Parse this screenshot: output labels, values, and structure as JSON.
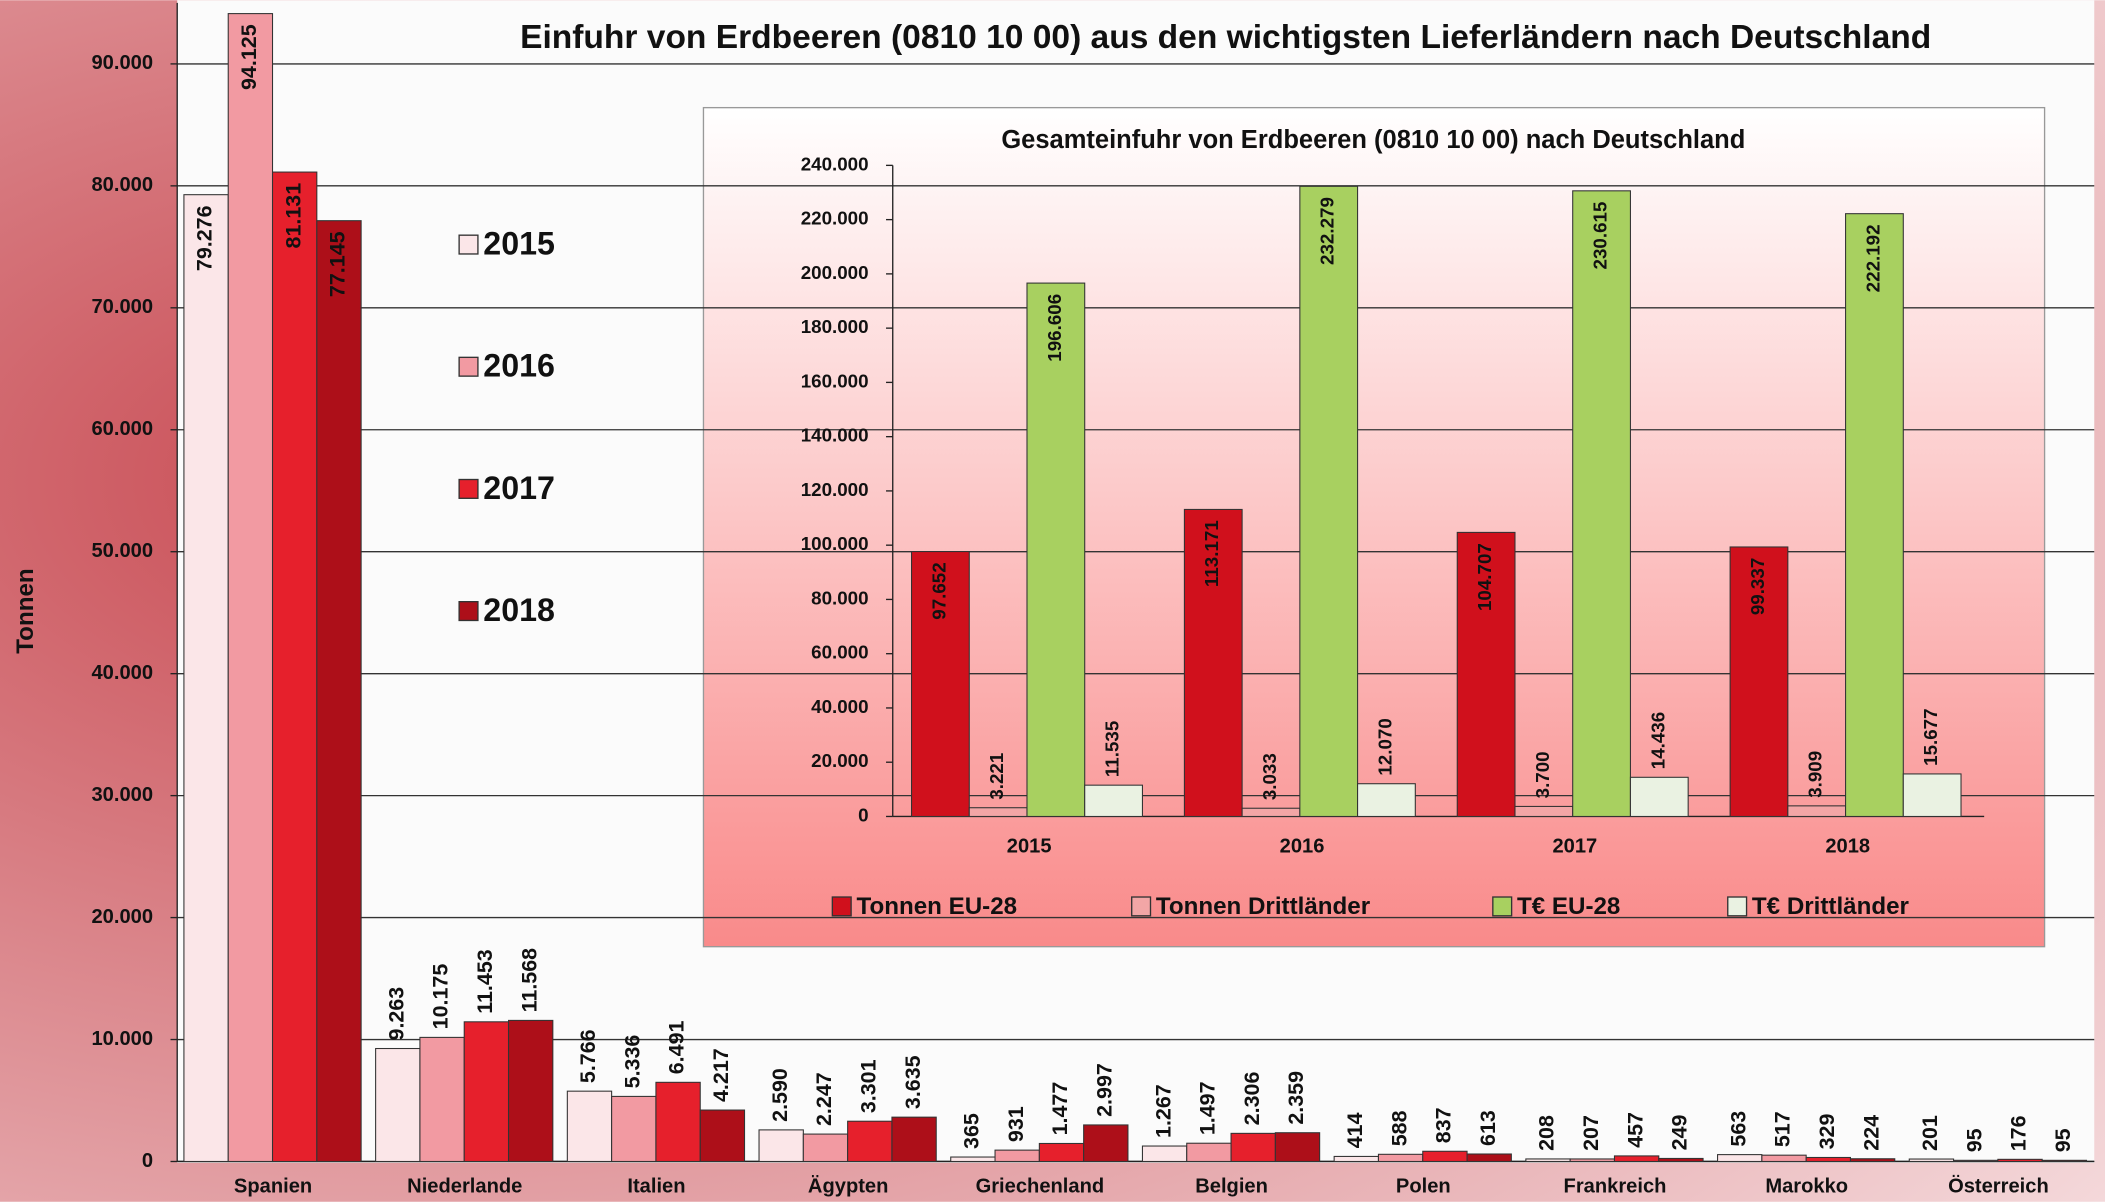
{
  "chart_data": [
    {
      "type": "bar",
      "title": "Einfuhr von Erdbeeren (0810 10 00) aus den wichtigsten Lieferländern nach Deutschland",
      "y_label": "Tonnen",
      "categories": [
        "Spanien",
        "Niederlande",
        "Italien",
        "Ägypten",
        "Griechenland",
        "Belgien",
        "Polen",
        "Frankreich",
        "Marokko",
        "Österreich"
      ],
      "series": [
        {
          "name": "2015",
          "color": "#fbe6e8",
          "values": [
            79276,
            9263,
            5766,
            2590,
            365,
            1267,
            414,
            208,
            563,
            201
          ],
          "value_labels": [
            "79.276",
            "9.263",
            "5.766",
            "2.590",
            "365",
            "1.267",
            "414",
            "208",
            "563",
            "201"
          ]
        },
        {
          "name": "2016",
          "color": "#f29aa2",
          "values": [
            94125,
            10175,
            5336,
            2247,
            931,
            1497,
            588,
            207,
            517,
            95
          ],
          "value_labels": [
            "94.125",
            "10.175",
            "5.336",
            "2.247",
            "931",
            "1.497",
            "588",
            "207",
            "517",
            "95"
          ]
        },
        {
          "name": "2017",
          "color": "#e6202c",
          "values": [
            81131,
            11453,
            6491,
            3301,
            1477,
            2306,
            837,
            457,
            329,
            176
          ],
          "value_labels": [
            "81.131",
            "11.453",
            "6.491",
            "3.301",
            "1.477",
            "2.306",
            "837",
            "457",
            "329",
            "176"
          ]
        },
        {
          "name": "2018",
          "color": "#ad0f19",
          "values": [
            77145,
            11568,
            4217,
            3635,
            2997,
            2359,
            613,
            249,
            224,
            95
          ],
          "value_labels": [
            "77.145",
            "11.568",
            "4.217",
            "3.635",
            "2.997",
            "2.359",
            "613",
            "249",
            "224",
            "95"
          ]
        }
      ],
      "ylim": [
        0,
        95000
      ],
      "yticks": [
        0,
        {
          "value": 10000,
          "label": "10.000"
        },
        {
          "value": 20000,
          "label": "20.000"
        },
        {
          "value": 30000,
          "label": "30.000"
        },
        {
          "value": 40000,
          "label": "40.000"
        },
        {
          "value": 50000,
          "label": "50.000"
        },
        {
          "value": 60000,
          "label": "60.000"
        },
        {
          "value": 70000,
          "label": "70.000"
        },
        {
          "value": 80000,
          "label": "80.000"
        },
        {
          "value": 90000,
          "label": "90.000"
        }
      ],
      "grid": true,
      "legend": "left"
    },
    {
      "type": "bar",
      "title": "Gesamteinfuhr von Erdbeeren (0810 10 00) nach Deutschland",
      "categories": [
        "2015",
        "2016",
        "2017",
        "2018"
      ],
      "series": [
        {
          "name": "Tonnen EU-28",
          "color": "#d0101c",
          "values": [
            97652,
            113171,
            104707,
            99337
          ],
          "value_labels": [
            "97.652",
            "113.171",
            "104.707",
            "99.337"
          ]
        },
        {
          "name": "Tonnen Drittländer",
          "color": "#f2a6a6",
          "values": [
            3221,
            3033,
            3700,
            3909
          ],
          "value_labels": [
            "3.221",
            "3.033",
            "3.700",
            "3.909"
          ]
        },
        {
          "name": "T€ EU-28",
          "color": "#a8d060",
          "values": [
            196606,
            232279,
            230615,
            222192
          ],
          "value_labels": [
            "196.606",
            "232.279",
            "230.615",
            "222.192"
          ]
        },
        {
          "name": "T€ Drittländer",
          "color": "#eaf2e2",
          "values": [
            11535,
            12070,
            14436,
            15677
          ],
          "value_labels": [
            "11.535",
            "12.070",
            "14.436",
            "15.677"
          ]
        }
      ],
      "ylim": [
        0,
        240000
      ],
      "yticks": [
        0,
        {
          "value": 20000,
          "label": "20.000"
        },
        {
          "value": 40000,
          "label": "40.000"
        },
        {
          "value": 60000,
          "label": "60.000"
        },
        {
          "value": 80000,
          "label": "80.000"
        },
        {
          "value": 100000,
          "label": "100.000"
        },
        {
          "value": 120000,
          "label": "120.000"
        },
        {
          "value": 140000,
          "label": "140.000"
        },
        {
          "value": 160000,
          "label": "160.000"
        },
        {
          "value": 180000,
          "label": "180.000"
        },
        {
          "value": 200000,
          "label": "200.000"
        },
        {
          "value": 220000,
          "label": "220.000"
        },
        {
          "value": 240000,
          "label": "240.000"
        }
      ],
      "grid": false,
      "legend": "bottom"
    }
  ]
}
